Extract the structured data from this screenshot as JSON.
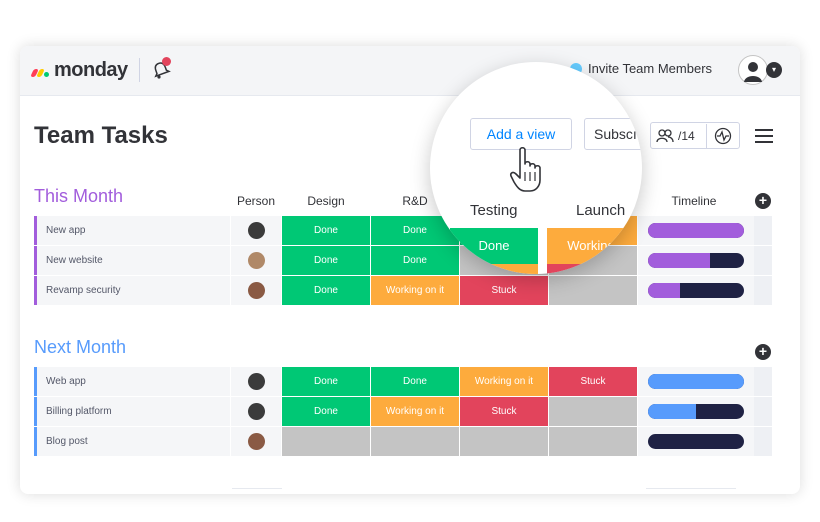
{
  "header": {
    "logo_text": "monday",
    "invite_label": "Invite Team Members"
  },
  "board": {
    "title": "Team Tasks",
    "add_view_label": "Add a view",
    "subscribe_label": "Subscı",
    "members_count": "/14"
  },
  "columns": {
    "person": "Person",
    "design": "Design",
    "rd": "R&D",
    "testing": "Testing",
    "launch": "Launch",
    "timeline": "Timeline"
  },
  "colors": {
    "done": "#00c875",
    "working": "#fdab3d",
    "stuck": "#e2445c",
    "empty": "#c4c4c4",
    "this_month": "#a25ddc",
    "next_month": "#579bfc",
    "timeline_dark": "#1f2244"
  },
  "groups": [
    {
      "title": "This Month",
      "color": "#a25ddc",
      "rows": [
        {
          "name": "New app",
          "design": "Done",
          "rd": "Done",
          "testing": "Done",
          "launch": "Working",
          "timeline": 1.0
        },
        {
          "name": "New website",
          "design": "Done",
          "rd": "Done",
          "testing": "",
          "launch": "",
          "timeline": 0.65
        },
        {
          "name": "Revamp security",
          "design": "Done",
          "rd": "Working on it",
          "testing": "Stuck",
          "launch": "",
          "timeline": 0.33
        }
      ]
    },
    {
      "title": "Next Month",
      "color": "#579bfc",
      "rows": [
        {
          "name": "Web app",
          "design": "Done",
          "rd": "Done",
          "testing": "Working on it",
          "launch": "Stuck",
          "timeline": 1.0
        },
        {
          "name": "Billing platform",
          "design": "Done",
          "rd": "Working on it",
          "testing": "Stuck",
          "launch": "",
          "timeline": 0.5
        },
        {
          "name": "Blog post",
          "design": "",
          "rd": "",
          "testing": "",
          "launch": "",
          "timeline": 0.0
        }
      ]
    }
  ],
  "magnifier": {
    "add_view_label": "Add a view",
    "subscribe_label": "Subscı",
    "testing_label": "Testing",
    "launch_label": "Launch",
    "cell_done": "Done",
    "cell_working": "Working"
  }
}
